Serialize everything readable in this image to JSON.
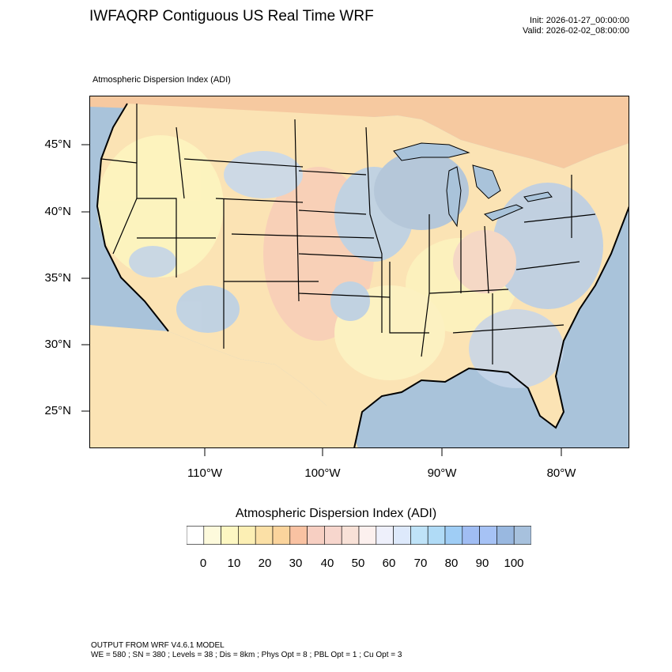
{
  "title": "IWFAQRP Contiguous US Real Time WRF",
  "init": "Init: 2026-01-27_00:00:00",
  "valid": "Valid: 2026-02-02_08:00:00",
  "field_label": "Atmospheric Dispersion Index   (ADI)",
  "map": {
    "lat_labels": [
      "45°N",
      "40°N",
      "35°N",
      "30°N",
      "25°N"
    ],
    "lon_labels": [
      "110°W",
      "100°W",
      "90°W",
      "80°W"
    ],
    "colors": {
      "ocean": "#a9c3da",
      "land_base": "#fbe3b4",
      "low": "#fdf6c0",
      "mid": "#f8c9b8",
      "high": "#b7d0ea",
      "canada": "#f6c9a0"
    }
  },
  "colorbar": {
    "title": "Atmospheric Dispersion Index  (ADI)",
    "labels": [
      "0",
      "10",
      "20",
      "30",
      "40",
      "50",
      "60",
      "70",
      "80",
      "90",
      "100"
    ],
    "colors": [
      "#ffffff",
      "#fdfadc",
      "#fdf7c2",
      "#fcefb4",
      "#fbe0a6",
      "#fbd49c",
      "#f9c2a2",
      "#f7cfc2",
      "#f7d6cd",
      "#f8e1d7",
      "#fcf0ee",
      "#eef0fb",
      "#dde9fb",
      "#bfe3f8",
      "#b0dbf6",
      "#9fcdf5",
      "#a0bdf3",
      "#a6c2f5",
      "#99b8e0",
      "#a7c1dd"
    ]
  },
  "footer": {
    "line1": "OUTPUT FROM WRF V4.6.1 MODEL",
    "line2": "WE = 580 ; SN = 380 ; Levels = 38 ; Dis = 8km ; Phys Opt = 8 ; PBL Opt = 1 ; Cu Opt = 3"
  }
}
